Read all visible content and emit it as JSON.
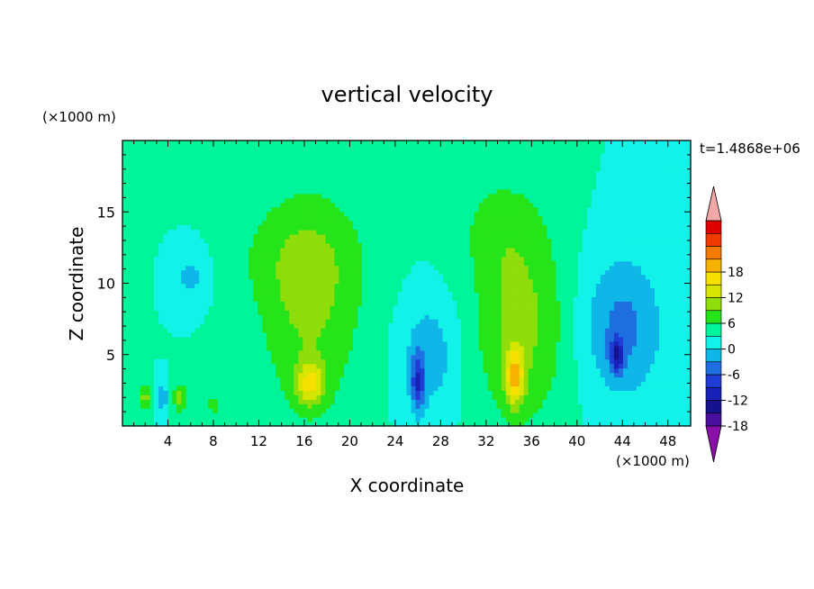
{
  "chart_data": {
    "type": "heatmap",
    "title": "vertical velocity",
    "xlabel": "X coordinate",
    "ylabel": "Z coordinate",
    "x_unit": "(×1000 m)",
    "y_unit": "(×1000 m)",
    "time_label": "t=1.4868e+06",
    "xlim": [
      0,
      50
    ],
    "ylim": [
      0,
      20
    ],
    "x_ticks": [
      4,
      8,
      12,
      16,
      20,
      24,
      28,
      32,
      36,
      40,
      44,
      48
    ],
    "y_ticks": [
      5,
      10,
      15
    ],
    "background_value": 0,
    "colorbar": {
      "labels": [
        "18",
        "12",
        "6",
        "0",
        "-6",
        "-12",
        "-18"
      ],
      "levels": [
        -21,
        -18,
        -15,
        -12,
        -9,
        -6,
        -3,
        0,
        3,
        6,
        9,
        12,
        15,
        18,
        21
      ],
      "colors": [
        "#4a0f9e",
        "#14128c",
        "#1822b8",
        "#1f3cd6",
        "#1e6fe0",
        "#0fb7e8",
        "#12f2e8",
        "#00f59a",
        "#26e41a",
        "#8fdd0a",
        "#d6e600",
        "#f5e000",
        "#f7b200",
        "#f57a00",
        "#f03a00",
        "#e10000"
      ],
      "under_color": "#8a0fa9",
      "over_color": "#f3a8a8"
    },
    "features": [
      {
        "x": 16.5,
        "z": 8,
        "sx": 4.5,
        "sz": 8,
        "value": 6
      },
      {
        "x": 15.5,
        "z": 12,
        "sx": 6,
        "sz": 4,
        "value": 3
      },
      {
        "x": 16.5,
        "z": 3,
        "sx": 1.2,
        "sz": 1.5,
        "value": 10
      },
      {
        "x": 35,
        "z": 7,
        "sx": 4,
        "sz": 7,
        "value": 7
      },
      {
        "x": 33,
        "z": 14,
        "sx": 4,
        "sz": 4,
        "value": 3
      },
      {
        "x": 34.5,
        "z": 3.5,
        "sx": 0.8,
        "sz": 2,
        "value": 12
      },
      {
        "x": 44,
        "z": 7,
        "sx": 3.5,
        "sz": 5,
        "value": -7
      },
      {
        "x": 43.5,
        "z": 5,
        "sx": 0.6,
        "sz": 1.2,
        "value": -11
      },
      {
        "x": 27,
        "z": 5,
        "sx": 2.5,
        "sz": 4,
        "value": -5
      },
      {
        "x": 26,
        "z": 3,
        "sx": 0.6,
        "sz": 2,
        "value": -10
      },
      {
        "x": 6,
        "z": 10.5,
        "sx": 1.5,
        "sz": 2,
        "value": -4
      },
      {
        "x": 2,
        "z": 2,
        "sx": 0.6,
        "sz": 1,
        "value": 7
      },
      {
        "x": 5,
        "z": 2,
        "sx": 0.6,
        "sz": 1,
        "value": 7
      },
      {
        "x": 3.5,
        "z": 2,
        "sx": 0.5,
        "sz": 1,
        "value": -5
      },
      {
        "x": 8,
        "z": 1.5,
        "sx": 0.6,
        "sz": 1,
        "value": 4
      }
    ]
  }
}
